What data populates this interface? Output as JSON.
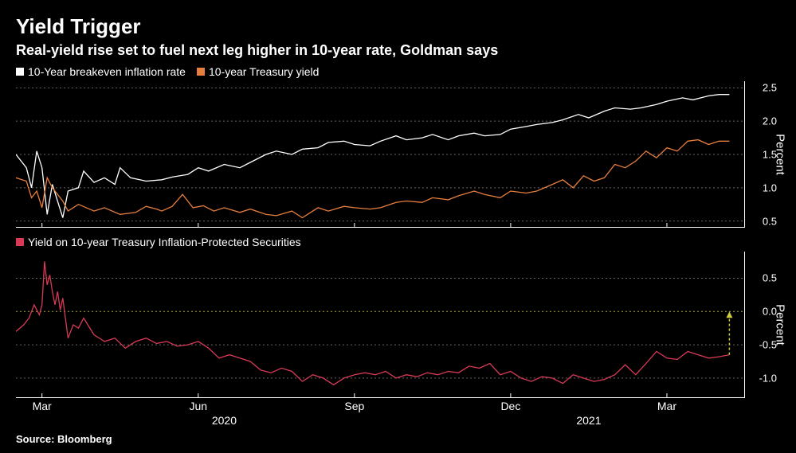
{
  "title": "Yield Trigger",
  "subtitle": "Real-yield rise set to fuel next leg higher in 10-year rate, Goldman says",
  "source": "Source: Bloomberg",
  "background_color": "#000000",
  "text_color": "#ffffff",
  "grid_color": "#666666",
  "zero_line_color": "#aaaa33",
  "x_axis": {
    "domain": [
      0,
      14
    ],
    "ticks": [
      {
        "pos": 0.5,
        "label": "Mar",
        "kind": "month"
      },
      {
        "pos": 3.5,
        "label": "Jun",
        "kind": "month"
      },
      {
        "pos": 4.0,
        "label": "2020",
        "kind": "year"
      },
      {
        "pos": 6.5,
        "label": "Sep",
        "kind": "month"
      },
      {
        "pos": 9.5,
        "label": "Dec",
        "kind": "month"
      },
      {
        "pos": 11.0,
        "label": "2021",
        "kind": "year"
      },
      {
        "pos": 12.5,
        "label": "Mar",
        "kind": "month"
      }
    ]
  },
  "top_chart": {
    "type": "line",
    "ylabel": "Percent",
    "ylim": [
      0.4,
      2.6
    ],
    "yticks": [
      0.5,
      1.0,
      1.5,
      2.0,
      2.5
    ],
    "legend": [
      {
        "label": "10-Year breakeven inflation rate",
        "color": "#ffffff"
      },
      {
        "label": "10-year Treasury yield",
        "color": "#e67e3c"
      }
    ],
    "series": [
      {
        "name": "breakeven",
        "color": "#ffffff",
        "stroke_width": 1.3,
        "data": [
          [
            0.0,
            1.5
          ],
          [
            0.2,
            1.3
          ],
          [
            0.3,
            1.0
          ],
          [
            0.4,
            1.55
          ],
          [
            0.5,
            1.3
          ],
          [
            0.6,
            0.6
          ],
          [
            0.7,
            1.05
          ],
          [
            0.9,
            0.55
          ],
          [
            1.0,
            0.95
          ],
          [
            1.2,
            1.0
          ],
          [
            1.3,
            1.25
          ],
          [
            1.5,
            1.08
          ],
          [
            1.7,
            1.15
          ],
          [
            1.9,
            1.05
          ],
          [
            2.0,
            1.3
          ],
          [
            2.2,
            1.15
          ],
          [
            2.5,
            1.1
          ],
          [
            2.8,
            1.12
          ],
          [
            3.0,
            1.16
          ],
          [
            3.3,
            1.2
          ],
          [
            3.5,
            1.3
          ],
          [
            3.7,
            1.25
          ],
          [
            4.0,
            1.35
          ],
          [
            4.3,
            1.3
          ],
          [
            4.5,
            1.38
          ],
          [
            4.8,
            1.5
          ],
          [
            5.0,
            1.55
          ],
          [
            5.3,
            1.5
          ],
          [
            5.5,
            1.58
          ],
          [
            5.8,
            1.6
          ],
          [
            6.0,
            1.68
          ],
          [
            6.3,
            1.7
          ],
          [
            6.5,
            1.65
          ],
          [
            6.8,
            1.63
          ],
          [
            7.0,
            1.7
          ],
          [
            7.3,
            1.78
          ],
          [
            7.5,
            1.72
          ],
          [
            7.8,
            1.75
          ],
          [
            8.0,
            1.8
          ],
          [
            8.3,
            1.72
          ],
          [
            8.5,
            1.78
          ],
          [
            8.8,
            1.82
          ],
          [
            9.0,
            1.78
          ],
          [
            9.3,
            1.8
          ],
          [
            9.5,
            1.88
          ],
          [
            9.8,
            1.92
          ],
          [
            10.0,
            1.95
          ],
          [
            10.3,
            1.98
          ],
          [
            10.5,
            2.02
          ],
          [
            10.8,
            2.1
          ],
          [
            11.0,
            2.05
          ],
          [
            11.3,
            2.15
          ],
          [
            11.5,
            2.2
          ],
          [
            11.8,
            2.18
          ],
          [
            12.0,
            2.2
          ],
          [
            12.3,
            2.25
          ],
          [
            12.5,
            2.3
          ],
          [
            12.8,
            2.35
          ],
          [
            13.0,
            2.32
          ],
          [
            13.3,
            2.38
          ],
          [
            13.5,
            2.4
          ],
          [
            13.7,
            2.4
          ]
        ]
      },
      {
        "name": "treasury_yield",
        "color": "#e67e3c",
        "stroke_width": 1.3,
        "data": [
          [
            0.0,
            1.15
          ],
          [
            0.2,
            1.1
          ],
          [
            0.3,
            0.85
          ],
          [
            0.4,
            0.95
          ],
          [
            0.5,
            0.7
          ],
          [
            0.6,
            1.15
          ],
          [
            0.7,
            1.0
          ],
          [
            0.9,
            0.8
          ],
          [
            1.0,
            0.65
          ],
          [
            1.2,
            0.75
          ],
          [
            1.5,
            0.65
          ],
          [
            1.7,
            0.7
          ],
          [
            2.0,
            0.6
          ],
          [
            2.3,
            0.63
          ],
          [
            2.5,
            0.72
          ],
          [
            2.7,
            0.68
          ],
          [
            2.8,
            0.65
          ],
          [
            3.0,
            0.72
          ],
          [
            3.2,
            0.9
          ],
          [
            3.4,
            0.7
          ],
          [
            3.6,
            0.73
          ],
          [
            3.8,
            0.65
          ],
          [
            4.0,
            0.7
          ],
          [
            4.3,
            0.63
          ],
          [
            4.5,
            0.68
          ],
          [
            4.8,
            0.6
          ],
          [
            5.0,
            0.58
          ],
          [
            5.3,
            0.65
          ],
          [
            5.5,
            0.55
          ],
          [
            5.8,
            0.7
          ],
          [
            6.0,
            0.65
          ],
          [
            6.3,
            0.72
          ],
          [
            6.5,
            0.7
          ],
          [
            6.8,
            0.68
          ],
          [
            7.0,
            0.7
          ],
          [
            7.3,
            0.78
          ],
          [
            7.5,
            0.8
          ],
          [
            7.8,
            0.78
          ],
          [
            8.0,
            0.85
          ],
          [
            8.3,
            0.82
          ],
          [
            8.5,
            0.88
          ],
          [
            8.8,
            0.95
          ],
          [
            9.0,
            0.9
          ],
          [
            9.3,
            0.85
          ],
          [
            9.5,
            0.95
          ],
          [
            9.8,
            0.92
          ],
          [
            10.0,
            0.95
          ],
          [
            10.3,
            1.05
          ],
          [
            10.5,
            1.12
          ],
          [
            10.7,
            1.0
          ],
          [
            10.9,
            1.18
          ],
          [
            11.1,
            1.1
          ],
          [
            11.3,
            1.15
          ],
          [
            11.5,
            1.35
          ],
          [
            11.7,
            1.3
          ],
          [
            11.9,
            1.4
          ],
          [
            12.1,
            1.55
          ],
          [
            12.3,
            1.45
          ],
          [
            12.5,
            1.6
          ],
          [
            12.7,
            1.55
          ],
          [
            12.9,
            1.7
          ],
          [
            13.1,
            1.72
          ],
          [
            13.3,
            1.65
          ],
          [
            13.5,
            1.7
          ],
          [
            13.7,
            1.7
          ]
        ]
      }
    ]
  },
  "bottom_chart": {
    "type": "line",
    "ylabel": "Percent",
    "ylim": [
      -1.3,
      0.9
    ],
    "yticks": [
      -1.0,
      -0.5,
      0.0,
      0.5
    ],
    "zero_line": 0.0,
    "legend": [
      {
        "label": "Yield on 10-year Treasury Inflation-Protected Securities",
        "color": "#d83a56"
      }
    ],
    "series": [
      {
        "name": "tips_yield",
        "color": "#d83a56",
        "stroke_width": 1.3,
        "data": [
          [
            0.0,
            -0.3
          ],
          [
            0.15,
            -0.2
          ],
          [
            0.25,
            -0.1
          ],
          [
            0.35,
            0.1
          ],
          [
            0.45,
            -0.05
          ],
          [
            0.5,
            0.1
          ],
          [
            0.55,
            0.75
          ],
          [
            0.6,
            0.4
          ],
          [
            0.65,
            0.55
          ],
          [
            0.7,
            0.3
          ],
          [
            0.75,
            0.1
          ],
          [
            0.8,
            0.3
          ],
          [
            0.85,
            0.02
          ],
          [
            0.9,
            0.2
          ],
          [
            1.0,
            -0.4
          ],
          [
            1.1,
            -0.2
          ],
          [
            1.2,
            -0.25
          ],
          [
            1.3,
            -0.1
          ],
          [
            1.5,
            -0.35
          ],
          [
            1.7,
            -0.45
          ],
          [
            1.9,
            -0.4
          ],
          [
            2.1,
            -0.55
          ],
          [
            2.3,
            -0.45
          ],
          [
            2.5,
            -0.4
          ],
          [
            2.7,
            -0.48
          ],
          [
            2.9,
            -0.45
          ],
          [
            3.1,
            -0.52
          ],
          [
            3.3,
            -0.5
          ],
          [
            3.5,
            -0.45
          ],
          [
            3.7,
            -0.55
          ],
          [
            3.9,
            -0.7
          ],
          [
            4.1,
            -0.65
          ],
          [
            4.3,
            -0.7
          ],
          [
            4.5,
            -0.75
          ],
          [
            4.7,
            -0.88
          ],
          [
            4.9,
            -0.92
          ],
          [
            5.1,
            -0.85
          ],
          [
            5.3,
            -0.9
          ],
          [
            5.5,
            -1.05
          ],
          [
            5.7,
            -0.95
          ],
          [
            5.9,
            -1.0
          ],
          [
            6.1,
            -1.1
          ],
          [
            6.3,
            -1.0
          ],
          [
            6.5,
            -0.95
          ],
          [
            6.7,
            -0.92
          ],
          [
            6.9,
            -0.95
          ],
          [
            7.1,
            -0.9
          ],
          [
            7.3,
            -1.0
          ],
          [
            7.5,
            -0.95
          ],
          [
            7.7,
            -0.98
          ],
          [
            7.9,
            -0.92
          ],
          [
            8.1,
            -0.95
          ],
          [
            8.3,
            -0.9
          ],
          [
            8.5,
            -0.92
          ],
          [
            8.7,
            -0.82
          ],
          [
            8.9,
            -0.85
          ],
          [
            9.1,
            -0.78
          ],
          [
            9.3,
            -0.95
          ],
          [
            9.5,
            -0.9
          ],
          [
            9.7,
            -1.0
          ],
          [
            9.9,
            -1.05
          ],
          [
            10.1,
            -0.98
          ],
          [
            10.3,
            -1.0
          ],
          [
            10.5,
            -1.08
          ],
          [
            10.7,
            -0.95
          ],
          [
            10.9,
            -1.0
          ],
          [
            11.1,
            -1.05
          ],
          [
            11.3,
            -1.02
          ],
          [
            11.5,
            -0.95
          ],
          [
            11.7,
            -0.8
          ],
          [
            11.9,
            -0.95
          ],
          [
            12.1,
            -0.78
          ],
          [
            12.3,
            -0.6
          ],
          [
            12.5,
            -0.7
          ],
          [
            12.7,
            -0.72
          ],
          [
            12.9,
            -0.6
          ],
          [
            13.1,
            -0.65
          ],
          [
            13.3,
            -0.7
          ],
          [
            13.5,
            -0.68
          ],
          [
            13.7,
            -0.65
          ]
        ]
      }
    ],
    "arrow": {
      "x": 13.7,
      "from_y": -0.65,
      "to_y": 0.0,
      "color": "#cccc44"
    }
  }
}
